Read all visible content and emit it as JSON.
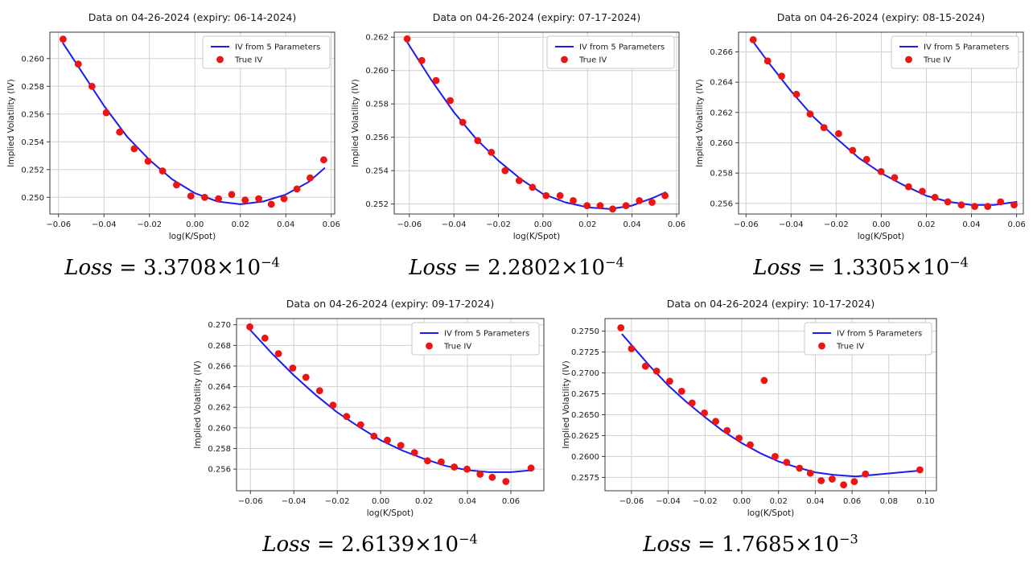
{
  "colors": {
    "background": "#ffffff",
    "fit_line": "#1c1cf0",
    "true_iv": "#ed1414",
    "grid": "#d0d0d0",
    "spine": "#3a3a3a",
    "tick_text": "#1a1a1a",
    "legend_border": "#c9c9c9",
    "legend_bg": "#ffffff"
  },
  "chart_data": [
    {
      "type": "line+scatter",
      "title": "Data on 04-26-2024 (expiry: 06-14-2024)",
      "xlabel": "log(K/Spot)",
      "ylabel": "Implied Volatility (IV)",
      "xlim": [
        -0.0638,
        0.0615
      ],
      "ylim": [
        0.2488,
        0.2619
      ],
      "xticks": [
        -0.06,
        -0.04,
        -0.02,
        0.0,
        0.02,
        0.04,
        0.06
      ],
      "yticks": [
        0.25,
        0.252,
        0.254,
        0.256,
        0.258,
        0.26
      ],
      "xdecimals": 2,
      "ydecimals": 3,
      "grid": true,
      "legend_position": "top-right",
      "series": [
        {
          "name": "IV from 5 Parameters",
          "type": "line",
          "points": [
            [
              -0.058,
              0.2611
            ],
            [
              -0.05,
              0.2591
            ],
            [
              -0.04,
              0.2566
            ],
            [
              -0.03,
              0.2544
            ],
            [
              -0.02,
              0.2527
            ],
            [
              -0.01,
              0.2513
            ],
            [
              0.0,
              0.2503
            ],
            [
              0.01,
              0.2497
            ],
            [
              0.02,
              0.2495
            ],
            [
              0.03,
              0.2497
            ],
            [
              0.04,
              0.2502
            ],
            [
              0.05,
              0.2511
            ],
            [
              0.057,
              0.2521
            ]
          ]
        },
        {
          "name": "True IV",
          "type": "scatter",
          "points": [
            [
              -0.058,
              0.2614
            ],
            [
              -0.0513,
              0.2596
            ],
            [
              -0.0453,
              0.258
            ],
            [
              -0.039,
              0.2561
            ],
            [
              -0.0331,
              0.2547
            ],
            [
              -0.0267,
              0.2535
            ],
            [
              -0.0206,
              0.2526
            ],
            [
              -0.0142,
              0.2519
            ],
            [
              -0.0081,
              0.2509
            ],
            [
              -0.0018,
              0.2501
            ],
            [
              0.0043,
              0.25
            ],
            [
              0.0104,
              0.2499
            ],
            [
              0.0162,
              0.2502
            ],
            [
              0.0221,
              0.2498
            ],
            [
              0.0281,
              0.2499
            ],
            [
              0.0336,
              0.2495
            ],
            [
              0.0392,
              0.2499
            ],
            [
              0.0449,
              0.2506
            ],
            [
              0.0507,
              0.2514
            ],
            [
              0.0567,
              0.2527
            ]
          ]
        }
      ],
      "loss": {
        "label": "Loss",
        "equals": "=",
        "mantissa": "3.3708",
        "times_base": "×10",
        "exponent": "−4"
      }
    },
    {
      "type": "line+scatter",
      "title": "Data on 04-26-2024 (expiry: 07-17-2024)",
      "xlabel": "log(K/Spot)",
      "ylabel": "Implied Volatility (IV)",
      "xlim": [
        -0.0668,
        0.0611
      ],
      "ylim": [
        0.2514,
        0.2623
      ],
      "xticks": [
        -0.06,
        -0.04,
        -0.02,
        0.0,
        0.02,
        0.04,
        0.06
      ],
      "yticks": [
        0.252,
        0.254,
        0.256,
        0.258,
        0.26,
        0.262
      ],
      "xdecimals": 2,
      "ydecimals": 3,
      "grid": true,
      "legend_position": "top-right",
      "series": [
        {
          "name": "IV from 5 Parameters",
          "type": "line",
          "points": [
            [
              -0.061,
              0.2617
            ],
            [
              -0.05,
              0.2594
            ],
            [
              -0.04,
              0.2575
            ],
            [
              -0.03,
              0.2559
            ],
            [
              -0.02,
              0.2546
            ],
            [
              -0.01,
              0.2535
            ],
            [
              0.0,
              0.2526
            ],
            [
              0.01,
              0.2521
            ],
            [
              0.02,
              0.2518
            ],
            [
              0.03,
              0.2517
            ],
            [
              0.04,
              0.2519
            ],
            [
              0.05,
              0.2524
            ],
            [
              0.055,
              0.2527
            ]
          ]
        },
        {
          "name": "True IV",
          "type": "scatter",
          "points": [
            [
              -0.061,
              0.2619
            ],
            [
              -0.0544,
              0.2606
            ],
            [
              -0.048,
              0.2594
            ],
            [
              -0.0417,
              0.2582
            ],
            [
              -0.036,
              0.2569
            ],
            [
              -0.0293,
              0.2558
            ],
            [
              -0.0232,
              0.2551
            ],
            [
              -0.017,
              0.254
            ],
            [
              -0.0107,
              0.2534
            ],
            [
              -0.0047,
              0.253
            ],
            [
              0.0014,
              0.2525
            ],
            [
              0.0077,
              0.2525
            ],
            [
              0.0136,
              0.2522
            ],
            [
              0.0198,
              0.2519
            ],
            [
              0.0257,
              0.2519
            ],
            [
              0.0313,
              0.2517
            ],
            [
              0.0373,
              0.2519
            ],
            [
              0.0433,
              0.2522
            ],
            [
              0.049,
              0.2521
            ],
            [
              0.0548,
              0.2525
            ]
          ]
        }
      ],
      "loss": {
        "label": "Loss",
        "equals": "=",
        "mantissa": "2.2802",
        "times_base": "×10",
        "exponent": "−4"
      }
    },
    {
      "type": "line+scatter",
      "title": "Data on 04-26-2024 (expiry: 08-15-2024)",
      "xlabel": "log(K/Spot)",
      "ylabel": "Implied Volatility (IV)",
      "xlim": [
        -0.0633,
        0.063
      ],
      "ylim": [
        0.2553,
        0.2673
      ],
      "xticks": [
        -0.06,
        -0.04,
        -0.02,
        0.0,
        0.02,
        0.04,
        0.06
      ],
      "yticks": [
        0.256,
        0.258,
        0.26,
        0.262,
        0.264,
        0.266
      ],
      "xdecimals": 2,
      "ydecimals": 3,
      "grid": true,
      "legend_position": "top-right",
      "series": [
        {
          "name": "IV from 5 Parameters",
          "type": "line",
          "points": [
            [
              -0.057,
              0.2667
            ],
            [
              -0.05,
              0.2653
            ],
            [
              -0.04,
              0.2634
            ],
            [
              -0.03,
              0.2617
            ],
            [
              -0.02,
              0.2603
            ],
            [
              -0.01,
              0.259
            ],
            [
              0.0,
              0.258
            ],
            [
              0.01,
              0.2572
            ],
            [
              0.02,
              0.2565
            ],
            [
              0.03,
              0.2561
            ],
            [
              0.04,
              0.2559
            ],
            [
              0.05,
              0.2559
            ],
            [
              0.06,
              0.2561
            ]
          ]
        },
        {
          "name": "True IV",
          "type": "scatter",
          "points": [
            [
              -0.0568,
              0.2668
            ],
            [
              -0.0504,
              0.2654
            ],
            [
              -0.0442,
              0.2644
            ],
            [
              -0.0376,
              0.2632
            ],
            [
              -0.0316,
              0.2619
            ],
            [
              -0.0254,
              0.261
            ],
            [
              -0.0189,
              0.2606
            ],
            [
              -0.0127,
              0.2595
            ],
            [
              -0.0065,
              0.2589
            ],
            [
              -0.0001,
              0.2581
            ],
            [
              0.0059,
              0.2577
            ],
            [
              0.0121,
              0.2571
            ],
            [
              0.0182,
              0.2568
            ],
            [
              0.0238,
              0.2564
            ],
            [
              0.0295,
              0.2561
            ],
            [
              0.0355,
              0.2559
            ],
            [
              0.0414,
              0.2558
            ],
            [
              0.0472,
              0.2558
            ],
            [
              0.0529,
              0.2561
            ],
            [
              0.0589,
              0.2559
            ]
          ]
        }
      ],
      "loss": {
        "label": "Loss",
        "equals": "=",
        "mantissa": "1.3305",
        "times_base": "×10",
        "exponent": "−4"
      }
    },
    {
      "type": "line+scatter",
      "title": "Data on 04-26-2024 (expiry: 09-17-2024)",
      "xlabel": "log(K/Spot)",
      "ylabel": "Implied Volatility (IV)",
      "xlim": [
        -0.0664,
        0.0752
      ],
      "ylim": [
        0.2539,
        0.2706
      ],
      "xticks": [
        -0.06,
        -0.04,
        -0.02,
        0.0,
        0.02,
        0.04,
        0.06
      ],
      "yticks": [
        0.256,
        0.258,
        0.26,
        0.262,
        0.264,
        0.266,
        0.268,
        0.27
      ],
      "xdecimals": 2,
      "ydecimals": 3,
      "grid": true,
      "legend_position": "top-right",
      "series": [
        {
          "name": "IV from 5 Parameters",
          "type": "line",
          "points": [
            [
              -0.061,
              0.2697
            ],
            [
              -0.05,
              0.2672
            ],
            [
              -0.04,
              0.2651
            ],
            [
              -0.03,
              0.2632
            ],
            [
              -0.02,
              0.2615
            ],
            [
              -0.01,
              0.2601
            ],
            [
              0.0,
              0.2588
            ],
            [
              0.01,
              0.2578
            ],
            [
              0.02,
              0.257
            ],
            [
              0.03,
              0.2563
            ],
            [
              0.04,
              0.2559
            ],
            [
              0.05,
              0.2557
            ],
            [
              0.06,
              0.2557
            ],
            [
              0.07,
              0.2559
            ]
          ]
        },
        {
          "name": "True IV",
          "type": "scatter",
          "points": [
            [
              -0.0603,
              0.2698
            ],
            [
              -0.0533,
              0.2687
            ],
            [
              -0.0471,
              0.2672
            ],
            [
              -0.0405,
              0.2658
            ],
            [
              -0.0344,
              0.2649
            ],
            [
              -0.0281,
              0.2636
            ],
            [
              -0.0219,
              0.2622
            ],
            [
              -0.0157,
              0.2611
            ],
            [
              -0.0092,
              0.2603
            ],
            [
              -0.0031,
              0.2592
            ],
            [
              0.0031,
              0.2588
            ],
            [
              0.0093,
              0.2583
            ],
            [
              0.0156,
              0.2576
            ],
            [
              0.0216,
              0.2568
            ],
            [
              0.0279,
              0.2567
            ],
            [
              0.0339,
              0.2562
            ],
            [
              0.0398,
              0.256
            ],
            [
              0.0458,
              0.2555
            ],
            [
              0.0514,
              0.2552
            ],
            [
              0.0577,
              0.2548
            ],
            [
              0.0693,
              0.2561
            ]
          ]
        }
      ],
      "loss": {
        "label": "Loss",
        "equals": "=",
        "mantissa": "2.6139",
        "times_base": "×10",
        "exponent": "−4"
      }
    },
    {
      "type": "line+scatter",
      "title": "Data on 04-26-2024 (expiry: 10-17-2024)",
      "xlabel": "log(K/Spot)",
      "ylabel": "Implied Volatility (IV)",
      "xlim": [
        -0.0744,
        0.1059
      ],
      "ylim": [
        0.2559,
        0.2765
      ],
      "xticks": [
        -0.06,
        -0.04,
        -0.02,
        0.0,
        0.02,
        0.04,
        0.06,
        0.08,
        0.1
      ],
      "yticks": [
        0.2575,
        0.26,
        0.2625,
        0.265,
        0.2675,
        0.27,
        0.2725,
        0.275
      ],
      "xdecimals": 2,
      "ydecimals": 4,
      "grid": true,
      "legend_position": "top-right",
      "series": [
        {
          "name": "IV from 5 Parameters",
          "type": "line",
          "points": [
            [
              -0.065,
              0.2746
            ],
            [
              -0.05,
              0.2708
            ],
            [
              -0.04,
              0.2685
            ],
            [
              -0.03,
              0.2665
            ],
            [
              -0.02,
              0.2647
            ],
            [
              -0.01,
              0.263
            ],
            [
              0.0,
              0.2616
            ],
            [
              0.01,
              0.2604
            ],
            [
              0.02,
              0.2594
            ],
            [
              0.03,
              0.2587
            ],
            [
              0.04,
              0.2581
            ],
            [
              0.05,
              0.2578
            ],
            [
              0.062,
              0.2576
            ],
            [
              0.096,
              0.2583
            ]
          ]
        },
        {
          "name": "True IV",
          "type": "scatter",
          "points": [
            [
              -0.0658,
              0.2754
            ],
            [
              -0.06,
              0.2729
            ],
            [
              -0.0524,
              0.2708
            ],
            [
              -0.0463,
              0.2702
            ],
            [
              -0.0392,
              0.269
            ],
            [
              -0.0327,
              0.2678
            ],
            [
              -0.027,
              0.2664
            ],
            [
              -0.0203,
              0.2652
            ],
            [
              -0.0142,
              0.2642
            ],
            [
              -0.008,
              0.2631
            ],
            [
              -0.0015,
              0.2622
            ],
            [
              0.0046,
              0.2614
            ],
            [
              0.0122,
              0.2691
            ],
            [
              0.0181,
              0.26
            ],
            [
              0.0244,
              0.2593
            ],
            [
              0.0314,
              0.2586
            ],
            [
              0.0373,
              0.258
            ],
            [
              0.0432,
              0.2571
            ],
            [
              0.0492,
              0.2573
            ],
            [
              0.0554,
              0.2566
            ],
            [
              0.0612,
              0.257
            ],
            [
              0.0673,
              0.2579
            ],
            [
              0.0969,
              0.2584
            ]
          ]
        }
      ],
      "loss": {
        "label": "Loss",
        "equals": "=",
        "mantissa": "1.7685",
        "times_base": "×10",
        "exponent": "−3"
      }
    }
  ]
}
